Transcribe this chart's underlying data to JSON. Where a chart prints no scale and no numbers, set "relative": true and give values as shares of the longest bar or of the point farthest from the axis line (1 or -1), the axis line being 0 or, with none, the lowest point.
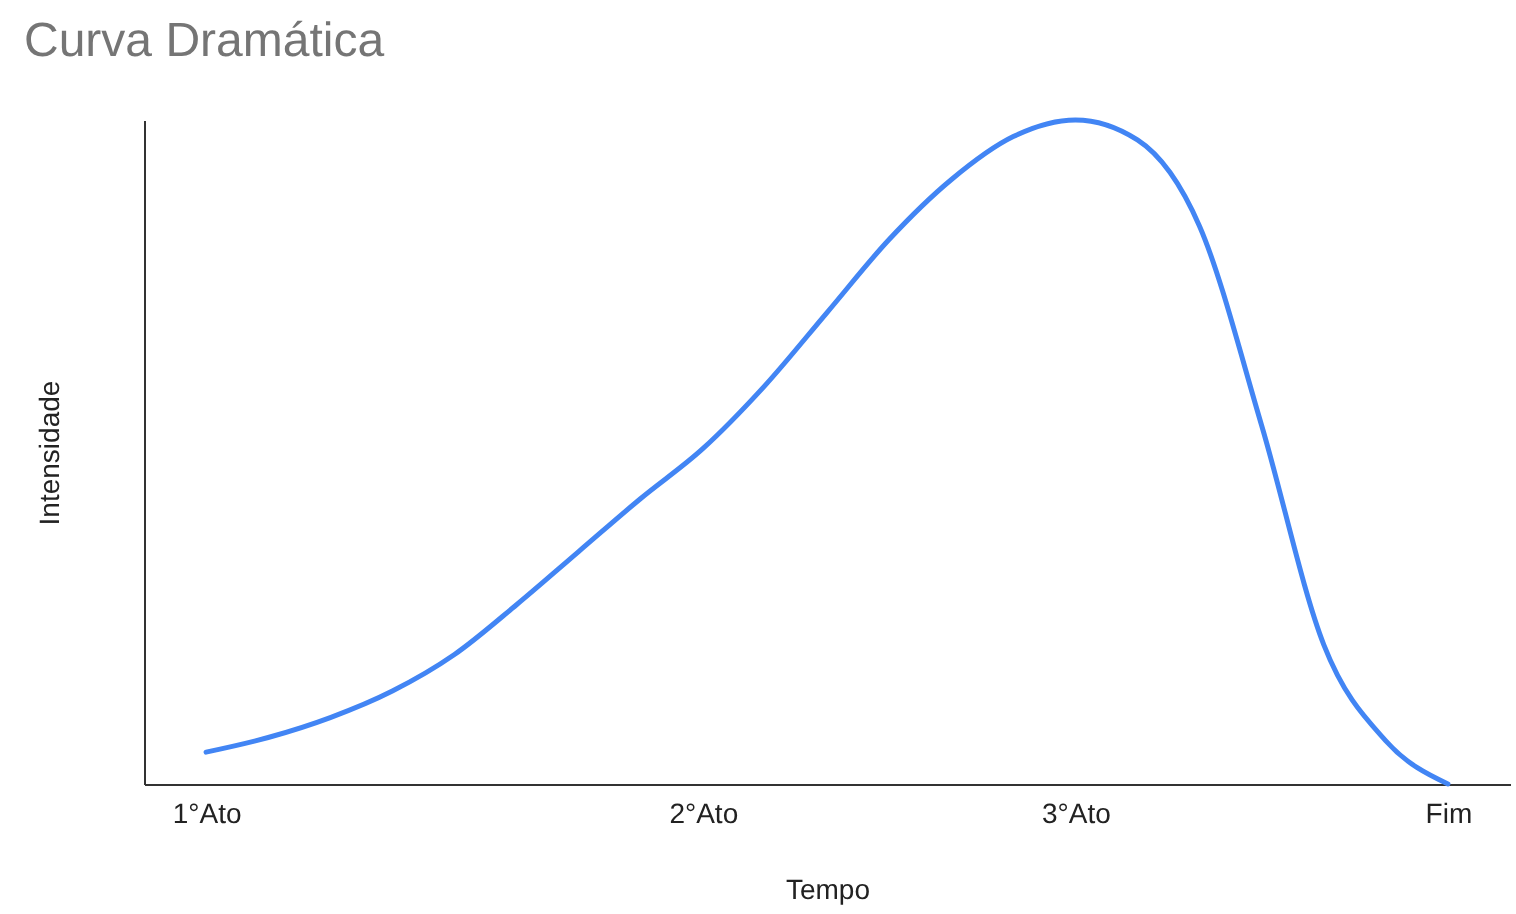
{
  "chart_data": {
    "type": "line",
    "title": "Curva Dramática",
    "xlabel": "Tempo",
    "ylabel": "Intensidade",
    "relative": true,
    "categories": [
      "1°Ato",
      null,
      null,
      null,
      null,
      null,
      null,
      null,
      "2°Ato",
      null,
      null,
      null,
      null,
      null,
      "3°Ato",
      null,
      null,
      null,
      null,
      null,
      "Fim"
    ],
    "series": [
      {
        "color": "#4285f4",
        "values": [
          0.048,
          0.07,
          0.1,
          0.14,
          0.195,
          0.27,
          0.35,
          0.43,
          0.505,
          0.6,
          0.71,
          0.82,
          0.91,
          0.975,
          1.0,
          0.97,
          0.84,
          0.54,
          0.21,
          0.065,
          0
        ]
      }
    ]
  }
}
